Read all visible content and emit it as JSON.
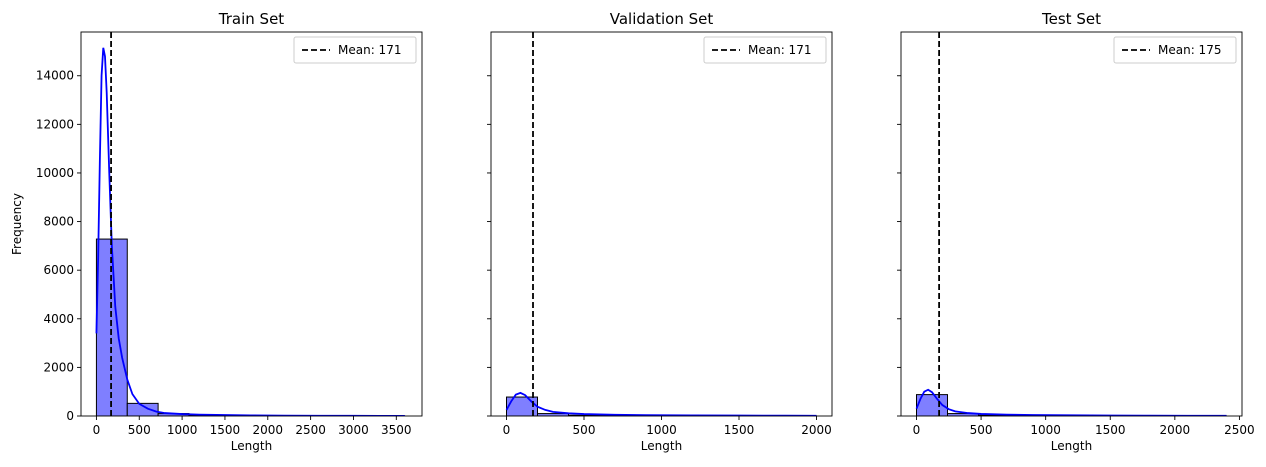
{
  "chart_data": [
    {
      "type": "histogram",
      "title": "Train Set",
      "xlabel": "Length",
      "ylabel": "Frequency",
      "xlim": [
        -180,
        3800
      ],
      "xticks": [
        0,
        500,
        1000,
        1500,
        2000,
        2500,
        3000,
        3500
      ],
      "ylim": [
        0,
        15800
      ],
      "yticks": [
        0,
        2000,
        4000,
        6000,
        8000,
        10000,
        12000,
        14000
      ],
      "bins": [
        {
          "x0": 0,
          "x1": 360,
          "count": 7280
        },
        {
          "x0": 360,
          "x1": 720,
          "count": 520
        },
        {
          "x0": 720,
          "x1": 1080,
          "count": 100
        },
        {
          "x0": 1080,
          "x1": 1440,
          "count": 35
        },
        {
          "x0": 1440,
          "x1": 1800,
          "count": 18
        },
        {
          "x0": 1800,
          "x1": 2160,
          "count": 8
        },
        {
          "x0": 2160,
          "x1": 2520,
          "count": 5
        },
        {
          "x0": 2520,
          "x1": 2880,
          "count": 3
        },
        {
          "x0": 2880,
          "x1": 3240,
          "count": 2
        },
        {
          "x0": 3240,
          "x1": 3600,
          "count": 1
        }
      ],
      "kde": [
        [
          0,
          3400
        ],
        [
          20,
          6500
        ],
        [
          40,
          10500
        ],
        [
          60,
          14000
        ],
        [
          80,
          15150
        ],
        [
          100,
          14800
        ],
        [
          120,
          13300
        ],
        [
          150,
          10000
        ],
        [
          180,
          7000
        ],
        [
          220,
          4500
        ],
        [
          260,
          3200
        ],
        [
          300,
          2400
        ],
        [
          360,
          1500
        ],
        [
          420,
          900
        ],
        [
          500,
          500
        ],
        [
          600,
          300
        ],
        [
          700,
          180
        ],
        [
          800,
          120
        ],
        [
          1000,
          80
        ],
        [
          1200,
          55
        ],
        [
          1500,
          40
        ],
        [
          1800,
          25
        ],
        [
          2200,
          15
        ],
        [
          2600,
          10
        ],
        [
          3000,
          8
        ],
        [
          3300,
          6
        ],
        [
          3600,
          5
        ]
      ],
      "mean_value": 171,
      "legend": {
        "label": "Mean: 171",
        "position": "top-right"
      }
    },
    {
      "type": "histogram",
      "title": "Validation Set",
      "xlabel": "Length",
      "ylabel": "",
      "xlim": [
        -100,
        2100
      ],
      "xticks": [
        0,
        500,
        1000,
        1500,
        2000
      ],
      "ylim": [
        0,
        15800
      ],
      "yticks": [
        0,
        2000,
        4000,
        6000,
        8000,
        10000,
        12000,
        14000
      ],
      "bins": [
        {
          "x0": 0,
          "x1": 200,
          "count": 780
        },
        {
          "x0": 200,
          "x1": 400,
          "count": 100
        },
        {
          "x0": 400,
          "x1": 600,
          "count": 30
        },
        {
          "x0": 600,
          "x1": 800,
          "count": 18
        },
        {
          "x0": 800,
          "x1": 1000,
          "count": 10
        },
        {
          "x0": 1000,
          "x1": 1200,
          "count": 8
        },
        {
          "x0": 1200,
          "x1": 1400,
          "count": 5
        },
        {
          "x0": 1400,
          "x1": 1600,
          "count": 4
        },
        {
          "x0": 1600,
          "x1": 1800,
          "count": 3
        },
        {
          "x0": 1800,
          "x1": 2000,
          "count": 2
        }
      ],
      "kde": [
        [
          0,
          250
        ],
        [
          30,
          600
        ],
        [
          60,
          880
        ],
        [
          90,
          950
        ],
        [
          120,
          860
        ],
        [
          160,
          600
        ],
        [
          200,
          380
        ],
        [
          250,
          250
        ],
        [
          300,
          170
        ],
        [
          400,
          110
        ],
        [
          500,
          80
        ],
        [
          700,
          50
        ],
        [
          900,
          35
        ],
        [
          1200,
          25
        ],
        [
          1500,
          18
        ],
        [
          1800,
          12
        ],
        [
          2000,
          10
        ]
      ],
      "mean_value": 171,
      "legend": {
        "label": "Mean: 171",
        "position": "top-right"
      }
    },
    {
      "type": "histogram",
      "title": "Test Set",
      "xlabel": "Length",
      "ylabel": "",
      "xlim": [
        -120,
        2520
      ],
      "xticks": [
        0,
        500,
        1000,
        1500,
        2000,
        2500
      ],
      "ylim": [
        0,
        15800
      ],
      "yticks": [
        0,
        2000,
        4000,
        6000,
        8000,
        10000,
        12000,
        14000
      ],
      "bins": [
        {
          "x0": 0,
          "x1": 240,
          "count": 880
        },
        {
          "x0": 240,
          "x1": 480,
          "count": 100
        },
        {
          "x0": 480,
          "x1": 720,
          "count": 35
        },
        {
          "x0": 720,
          "x1": 960,
          "count": 18
        },
        {
          "x0": 960,
          "x1": 1200,
          "count": 12
        },
        {
          "x0": 1200,
          "x1": 1440,
          "count": 8
        },
        {
          "x0": 1440,
          "x1": 1680,
          "count": 5
        },
        {
          "x0": 1680,
          "x1": 1920,
          "count": 4
        },
        {
          "x0": 1920,
          "x1": 2160,
          "count": 3
        },
        {
          "x0": 2160,
          "x1": 2400,
          "count": 2
        }
      ],
      "kde": [
        [
          0,
          300
        ],
        [
          30,
          700
        ],
        [
          60,
          1000
        ],
        [
          90,
          1080
        ],
        [
          120,
          980
        ],
        [
          160,
          700
        ],
        [
          200,
          450
        ],
        [
          250,
          280
        ],
        [
          300,
          190
        ],
        [
          400,
          120
        ],
        [
          500,
          85
        ],
        [
          700,
          55
        ],
        [
          900,
          40
        ],
        [
          1200,
          28
        ],
        [
          1500,
          20
        ],
        [
          1800,
          14
        ],
        [
          2100,
          10
        ],
        [
          2400,
          8
        ]
      ],
      "mean_value": 175,
      "legend": {
        "label": "Mean: 175",
        "position": "top-right"
      }
    }
  ],
  "colors": {
    "bar_fill": "#7f7fff",
    "bar_edge": "#000000",
    "kde_line": "#0000ff",
    "mean_line": "#000000"
  }
}
